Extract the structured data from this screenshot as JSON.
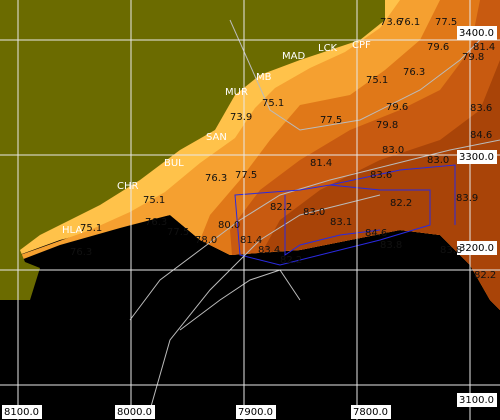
{
  "axes": {
    "x_labels": [
      "8100.0",
      "8000.0",
      "7900.0",
      "7800.0"
    ],
    "y_labels": [
      "3400.0",
      "3300.0",
      "3200.0",
      "3100.0"
    ]
  },
  "stations": [
    "CPF",
    "LCK",
    "MAD",
    "MB",
    "MUR",
    "SAN",
    "BUL",
    "CHR",
    "HLA"
  ],
  "contour_labels": [
    "73.6",
    "76.1",
    "77.5",
    "79.6",
    "81.4",
    "79.8",
    "75.1",
    "76.3",
    "79.6",
    "83.6",
    "77.5",
    "79.8",
    "84.6",
    "83.0",
    "83.0",
    "81.4",
    "83.6",
    "83.9",
    "82.2",
    "82.2",
    "81.4",
    "83.1",
    "83.0",
    "84.6",
    "83.8",
    "83.8",
    "83.4",
    "82.2",
    "82.2",
    "80.0",
    "76.3",
    "77.5",
    "75.1",
    "73.9",
    "75.1",
    "76.3",
    "75.1",
    "76.3",
    "77.5",
    "78.0"
  ]
}
